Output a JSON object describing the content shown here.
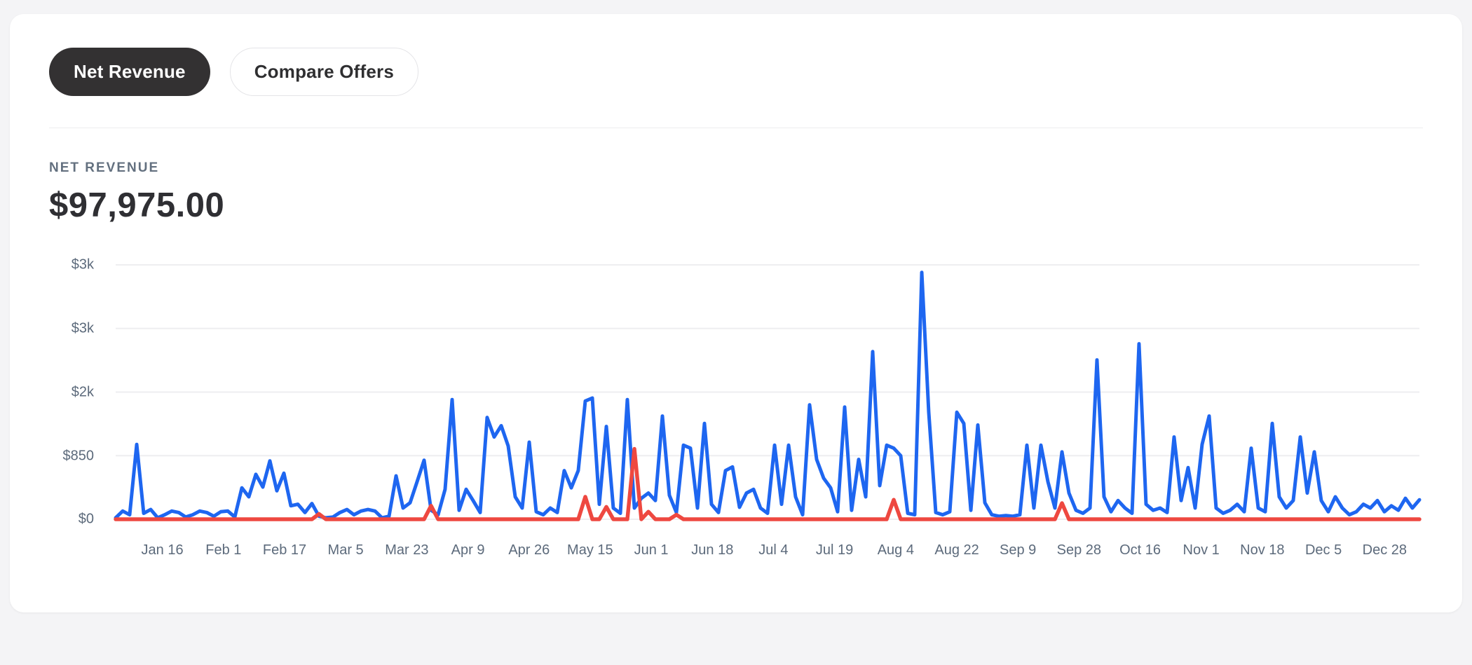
{
  "toggle": {
    "net_revenue_label": "Net Revenue",
    "compare_offers_label": "Compare Offers"
  },
  "metric": {
    "label": "NET REVENUE",
    "value": "$97,975.00"
  },
  "colors": {
    "primary_line": "#1e66f0",
    "secondary_line": "#ee4840",
    "gridline": "#eeeef0",
    "page_background": "#f4f4f6",
    "card_background": "#ffffff",
    "active_pill": "#333132",
    "axis_text": "#5c6a7b"
  },
  "chart_data": {
    "type": "line",
    "title": "Net Revenue",
    "xlabel": "",
    "ylabel": "",
    "ylim": [
      0,
      3400
    ],
    "grid": true,
    "legend": "none",
    "y_ticks": [
      {
        "label": "$3k",
        "value": 3400
      },
      {
        "label": "$3k",
        "value": 2550
      },
      {
        "label": "$2k",
        "value": 1700
      },
      {
        "label": "$850",
        "value": 850
      },
      {
        "label": "$0",
        "value": 0
      }
    ],
    "x_tick_labels": [
      "Jan 16",
      "Feb 1",
      "Feb 17",
      "Mar 5",
      "Mar 23",
      "Apr 9",
      "Apr 26",
      "May 15",
      "Jun 1",
      "Jun 18",
      "Jul 4",
      "Jul 19",
      "Aug 4",
      "Aug 22",
      "Sep 9",
      "Sep 28",
      "Oct 16",
      "Nov 1",
      "Nov 18",
      "Dec 5",
      "Dec 28"
    ],
    "series": [
      {
        "name": "primary",
        "color": "#1e66f0",
        "values": [
          20,
          110,
          60,
          1000,
          80,
          130,
          20,
          60,
          110,
          90,
          30,
          60,
          110,
          90,
          40,
          100,
          110,
          30,
          420,
          300,
          600,
          430,
          780,
          380,
          615,
          180,
          200,
          90,
          210,
          40,
          20,
          30,
          90,
          130,
          60,
          110,
          130,
          110,
          20,
          40,
          580,
          150,
          220,
          500,
          790,
          120,
          60,
          400,
          1600,
          120,
          400,
          250,
          90,
          1360,
          1100,
          1250,
          980,
          300,
          150,
          1030,
          100,
          60,
          150,
          90,
          650,
          420,
          650,
          1580,
          1620,
          200,
          1240,
          150,
          80,
          1600,
          150,
          280,
          350,
          250,
          1380,
          320,
          90,
          990,
          950,
          150,
          1280,
          200,
          90,
          650,
          700,
          160,
          350,
          400,
          150,
          80,
          990,
          200,
          990,
          300,
          60,
          1530,
          800,
          550,
          420,
          100,
          1500,
          120,
          800,
          300,
          2240,
          450,
          990,
          950,
          850,
          80,
          60,
          3300,
          1430,
          90,
          60,
          100,
          1430,
          1280,
          120,
          1260,
          220,
          60,
          40,
          50,
          40,
          60,
          990,
          150,
          990,
          500,
          150,
          900,
          350,
          120,
          80,
          150,
          2130,
          300,
          100,
          250,
          150,
          80,
          2345,
          200,
          120,
          150,
          90,
          1100,
          250,
          690,
          150,
          1000,
          1380,
          150,
          80,
          120,
          200,
          100,
          950,
          150,
          100,
          1280,
          300,
          150,
          250,
          1100,
          350,
          900,
          250,
          100,
          300,
          150,
          60,
          100,
          200,
          150,
          250,
          100,
          180,
          120,
          280,
          150,
          260
        ]
      },
      {
        "name": "secondary",
        "color": "#ee4840",
        "values": [
          0,
          0,
          0,
          0,
          0,
          0,
          0,
          0,
          0,
          0,
          0,
          0,
          0,
          0,
          0,
          0,
          0,
          0,
          0,
          0,
          0,
          0,
          0,
          0,
          0,
          0,
          0,
          0,
          0,
          70,
          0,
          0,
          0,
          0,
          0,
          0,
          0,
          0,
          0,
          0,
          0,
          0,
          0,
          0,
          0,
          180,
          0,
          0,
          0,
          0,
          0,
          0,
          0,
          0,
          0,
          0,
          0,
          0,
          0,
          0,
          0,
          0,
          0,
          0,
          0,
          0,
          0,
          300,
          0,
          0,
          165,
          0,
          0,
          0,
          940,
          0,
          100,
          0,
          0,
          0,
          60,
          0,
          0,
          0,
          0,
          0,
          0,
          0,
          0,
          0,
          0,
          0,
          0,
          0,
          0,
          0,
          0,
          0,
          0,
          0,
          0,
          0,
          0,
          0,
          0,
          0,
          0,
          0,
          0,
          0,
          0,
          260,
          0,
          0,
          0,
          0,
          0,
          0,
          0,
          0,
          0,
          0,
          0,
          0,
          0,
          0,
          0,
          0,
          0,
          0,
          0,
          0,
          0,
          0,
          0,
          215,
          0,
          0,
          0,
          0,
          0,
          0,
          0,
          0,
          0,
          0,
          0,
          0,
          0,
          0,
          0,
          0,
          0,
          0,
          0,
          0,
          0,
          0,
          0,
          0,
          0,
          0,
          0,
          0,
          0,
          0,
          0,
          0,
          0,
          0,
          0,
          0,
          0,
          0,
          0,
          0,
          0,
          0,
          0,
          0,
          0,
          0,
          0,
          0,
          0,
          0,
          0
        ]
      }
    ]
  }
}
